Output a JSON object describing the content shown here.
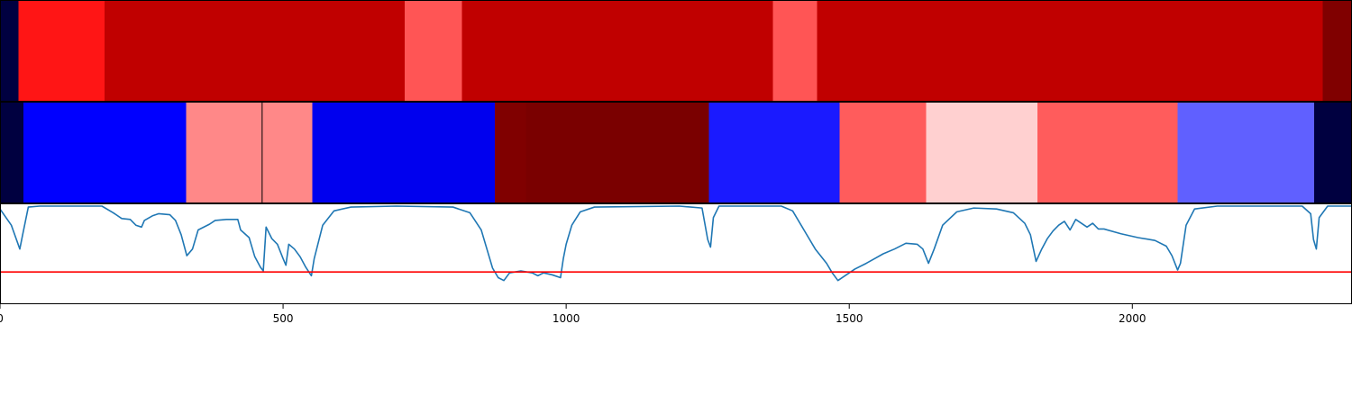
{
  "chart_data": {
    "type": "heatmap",
    "x_range": [
      0,
      2388
    ],
    "x_ticks": [
      0,
      500,
      1000,
      1500,
      2000
    ],
    "x_tick_labels": [
      "0",
      "500",
      "1000",
      "1500",
      "2000"
    ],
    "segmentation_tracks": [
      {
        "segments": [
          {
            "start": 0,
            "end": 33,
            "color": "#000040"
          },
          {
            "start": 33,
            "end": 185,
            "color": "#ff1515"
          },
          {
            "start": 185,
            "end": 715,
            "color": "#c00000"
          },
          {
            "start": 715,
            "end": 816,
            "color": "#ff5555"
          },
          {
            "start": 816,
            "end": 1365,
            "color": "#c00000"
          },
          {
            "start": 1365,
            "end": 1443,
            "color": "#ff5555"
          },
          {
            "start": 1443,
            "end": 2336,
            "color": "#c00000"
          },
          {
            "start": 2336,
            "end": 2388,
            "color": "#800000"
          }
        ]
      },
      {
        "segments": [
          {
            "start": 0,
            "end": 41,
            "color": "#000040"
          },
          {
            "start": 41,
            "end": 329,
            "color": "#0000ff"
          },
          {
            "start": 329,
            "end": 463,
            "color": "#ff8888"
          },
          {
            "start": 463,
            "end": 552,
            "color": "#ff8888"
          },
          {
            "start": 552,
            "end": 874,
            "color": "#0000ee"
          },
          {
            "start": 874,
            "end": 929,
            "color": "#800000"
          },
          {
            "start": 929,
            "end": 1252,
            "color": "#7a0000"
          },
          {
            "start": 1252,
            "end": 1483,
            "color": "#1a1aff"
          },
          {
            "start": 1483,
            "end": 1636,
            "color": "#ff5c5c"
          },
          {
            "start": 1636,
            "end": 1832,
            "color": "#ffd0d0"
          },
          {
            "start": 1832,
            "end": 2080,
            "color": "#ff5c5c"
          },
          {
            "start": 2080,
            "end": 2321,
            "color": "#6060ff"
          },
          {
            "start": 2321,
            "end": 2388,
            "color": "#000040"
          }
        ]
      }
    ],
    "line_series": {
      "color": "#1f77b4",
      "threshold": 0.31,
      "threshold_color": "#ff0000",
      "ylim": [
        0,
        1
      ],
      "points": [
        [
          0,
          0.97
        ],
        [
          20,
          0.8
        ],
        [
          35,
          0.55
        ],
        [
          40,
          0.7
        ],
        [
          50,
          0.99
        ],
        [
          70,
          1.0
        ],
        [
          180,
          1.0
        ],
        [
          200,
          0.93
        ],
        [
          215,
          0.87
        ],
        [
          230,
          0.86
        ],
        [
          240,
          0.8
        ],
        [
          250,
          0.78
        ],
        [
          255,
          0.85
        ],
        [
          270,
          0.9
        ],
        [
          280,
          0.92
        ],
        [
          300,
          0.91
        ],
        [
          310,
          0.85
        ],
        [
          320,
          0.7
        ],
        [
          330,
          0.48
        ],
        [
          340,
          0.55
        ],
        [
          350,
          0.75
        ],
        [
          370,
          0.81
        ],
        [
          380,
          0.85
        ],
        [
          400,
          0.86
        ],
        [
          420,
          0.86
        ],
        [
          425,
          0.75
        ],
        [
          440,
          0.67
        ],
        [
          450,
          0.47
        ],
        [
          460,
          0.36
        ],
        [
          465,
          0.32
        ],
        [
          470,
          0.78
        ],
        [
          480,
          0.66
        ],
        [
          490,
          0.6
        ],
        [
          500,
          0.45
        ],
        [
          505,
          0.38
        ],
        [
          510,
          0.6
        ],
        [
          520,
          0.55
        ],
        [
          530,
          0.47
        ],
        [
          540,
          0.36
        ],
        [
          550,
          0.27
        ],
        [
          555,
          0.45
        ],
        [
          570,
          0.8
        ],
        [
          590,
          0.95
        ],
        [
          620,
          0.99
        ],
        [
          700,
          1.0
        ],
        [
          800,
          0.99
        ],
        [
          830,
          0.93
        ],
        [
          850,
          0.75
        ],
        [
          860,
          0.55
        ],
        [
          870,
          0.35
        ],
        [
          880,
          0.25
        ],
        [
          890,
          0.22
        ],
        [
          900,
          0.3
        ],
        [
          920,
          0.32
        ],
        [
          940,
          0.3
        ],
        [
          950,
          0.27
        ],
        [
          960,
          0.3
        ],
        [
          975,
          0.28
        ],
        [
          990,
          0.25
        ],
        [
          995,
          0.45
        ],
        [
          1000,
          0.6
        ],
        [
          1010,
          0.8
        ],
        [
          1025,
          0.94
        ],
        [
          1050,
          0.99
        ],
        [
          1200,
          1.0
        ],
        [
          1240,
          0.98
        ],
        [
          1250,
          0.65
        ],
        [
          1255,
          0.57
        ],
        [
          1260,
          0.88
        ],
        [
          1270,
          1.0
        ],
        [
          1380,
          1.0
        ],
        [
          1400,
          0.95
        ],
        [
          1420,
          0.75
        ],
        [
          1440,
          0.55
        ],
        [
          1460,
          0.4
        ],
        [
          1470,
          0.3
        ],
        [
          1480,
          0.22
        ],
        [
          1495,
          0.28
        ],
        [
          1510,
          0.34
        ],
        [
          1530,
          0.4
        ],
        [
          1545,
          0.45
        ],
        [
          1560,
          0.5
        ],
        [
          1580,
          0.55
        ],
        [
          1600,
          0.61
        ],
        [
          1620,
          0.6
        ],
        [
          1630,
          0.55
        ],
        [
          1640,
          0.4
        ],
        [
          1650,
          0.55
        ],
        [
          1665,
          0.8
        ],
        [
          1690,
          0.94
        ],
        [
          1720,
          0.98
        ],
        [
          1760,
          0.97
        ],
        [
          1790,
          0.93
        ],
        [
          1810,
          0.82
        ],
        [
          1820,
          0.7
        ],
        [
          1830,
          0.42
        ],
        [
          1840,
          0.55
        ],
        [
          1850,
          0.66
        ],
        [
          1860,
          0.74
        ],
        [
          1870,
          0.8
        ],
        [
          1880,
          0.84
        ],
        [
          1890,
          0.75
        ],
        [
          1900,
          0.86
        ],
        [
          1920,
          0.78
        ],
        [
          1930,
          0.82
        ],
        [
          1940,
          0.76
        ],
        [
          1950,
          0.76
        ],
        [
          1980,
          0.71
        ],
        [
          2010,
          0.67
        ],
        [
          2040,
          0.64
        ],
        [
          2060,
          0.58
        ],
        [
          2070,
          0.48
        ],
        [
          2080,
          0.33
        ],
        [
          2085,
          0.4
        ],
        [
          2095,
          0.8
        ],
        [
          2110,
          0.97
        ],
        [
          2150,
          1.0
        ],
        [
          2300,
          1.0
        ],
        [
          2315,
          0.92
        ],
        [
          2320,
          0.65
        ],
        [
          2325,
          0.55
        ],
        [
          2330,
          0.88
        ],
        [
          2345,
          1.0
        ],
        [
          2388,
          1.0
        ]
      ]
    }
  }
}
